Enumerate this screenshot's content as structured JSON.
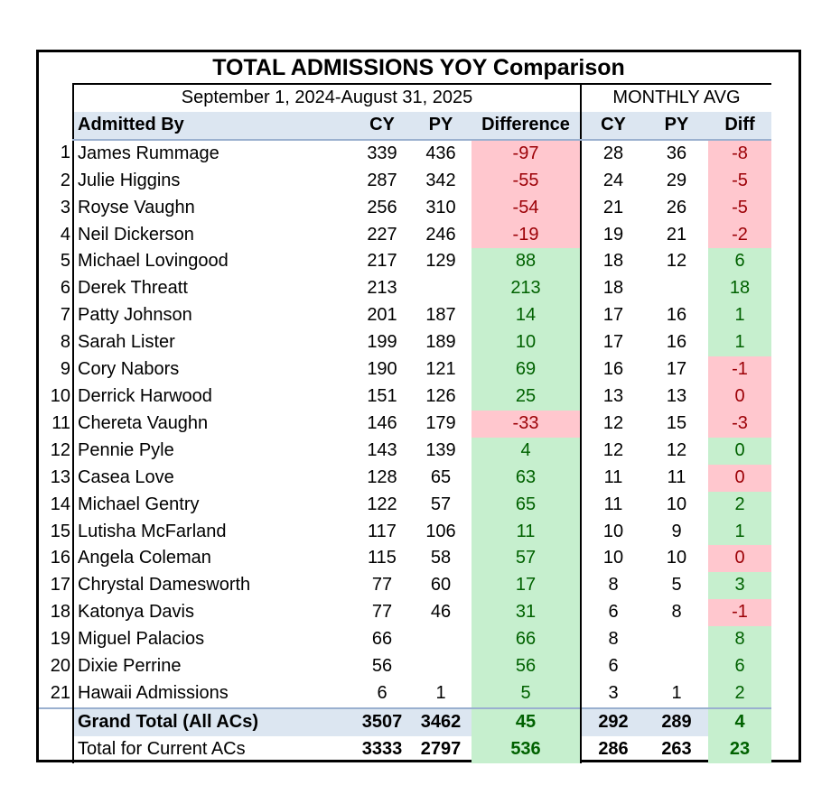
{
  "title": "TOTAL ADMISSIONS YOY Comparison",
  "period_label": "September 1, 2024-August 31, 2025",
  "monthly_label": "MONTHLY AVG",
  "headers": {
    "admitted_by": "Admitted By",
    "cy": "CY",
    "py": "PY",
    "difference": "Difference",
    "m_cy": "CY",
    "m_py": "PY",
    "m_diff": "Diff"
  },
  "rows": [
    {
      "idx": "1",
      "name": "James Rummage",
      "cy": "339",
      "py": "436",
      "diff": "-97",
      "mcy": "28",
      "mpy": "36",
      "mdiff": "-8"
    },
    {
      "idx": "2",
      "name": "Julie Higgins",
      "cy": "287",
      "py": "342",
      "diff": "-55",
      "mcy": "24",
      "mpy": "29",
      "mdiff": "-5"
    },
    {
      "idx": "3",
      "name": "Royse Vaughn",
      "cy": "256",
      "py": "310",
      "diff": "-54",
      "mcy": "21",
      "mpy": "26",
      "mdiff": "-5"
    },
    {
      "idx": "4",
      "name": "Neil Dickerson",
      "cy": "227",
      "py": "246",
      "diff": "-19",
      "mcy": "19",
      "mpy": "21",
      "mdiff": "-2"
    },
    {
      "idx": "5",
      "name": "Michael Lovingood",
      "cy": "217",
      "py": "129",
      "diff": "88",
      "mcy": "18",
      "mpy": "12",
      "mdiff": "6"
    },
    {
      "idx": "6",
      "name": "Derek Threatt",
      "cy": "213",
      "py": "",
      "diff": "213",
      "mcy": "18",
      "mpy": "",
      "mdiff": "18"
    },
    {
      "idx": "7",
      "name": "Patty Johnson",
      "cy": "201",
      "py": "187",
      "diff": "14",
      "mcy": "17",
      "mpy": "16",
      "mdiff": "1"
    },
    {
      "idx": "8",
      "name": "Sarah Lister",
      "cy": "199",
      "py": "189",
      "diff": "10",
      "mcy": "17",
      "mpy": "16",
      "mdiff": "1"
    },
    {
      "idx": "9",
      "name": "Cory Nabors",
      "cy": "190",
      "py": "121",
      "diff": "69",
      "mcy": "16",
      "mpy": "17",
      "mdiff": "-1"
    },
    {
      "idx": "10",
      "name": "Derrick Harwood",
      "cy": "151",
      "py": "126",
      "diff": "25",
      "mcy": "13",
      "mpy": "13",
      "mdiff": "0"
    },
    {
      "idx": "11",
      "name": "Chereta Vaughn",
      "cy": "146",
      "py": "179",
      "diff": "-33",
      "mcy": "12",
      "mpy": "15",
      "mdiff": "-3"
    },
    {
      "idx": "12",
      "name": "Pennie Pyle",
      "cy": "143",
      "py": "139",
      "diff": "4",
      "mcy": "12",
      "mpy": "12",
      "mdiff": "0"
    },
    {
      "idx": "13",
      "name": "Casea Love",
      "cy": "128",
      "py": "65",
      "diff": "63",
      "mcy": "11",
      "mpy": "11",
      "mdiff": "0"
    },
    {
      "idx": "14",
      "name": "Michael Gentry",
      "cy": "122",
      "py": "57",
      "diff": "65",
      "mcy": "11",
      "mpy": "10",
      "mdiff": "2"
    },
    {
      "idx": "15",
      "name": "Lutisha McFarland",
      "cy": "117",
      "py": "106",
      "diff": "11",
      "mcy": "10",
      "mpy": "9",
      "mdiff": "1"
    },
    {
      "idx": "16",
      "name": "Angela Coleman",
      "cy": "115",
      "py": "58",
      "diff": "57",
      "mcy": "10",
      "mpy": "10",
      "mdiff": "0"
    },
    {
      "idx": "17",
      "name": "Chrystal Damesworth",
      "cy": "77",
      "py": "60",
      "diff": "17",
      "mcy": "8",
      "mpy": "5",
      "mdiff": "3"
    },
    {
      "idx": "18",
      "name": "Katonya Davis",
      "cy": "77",
      "py": "46",
      "diff": "31",
      "mcy": "6",
      "mpy": "8",
      "mdiff": "-1"
    },
    {
      "idx": "19",
      "name": "Miguel Palacios",
      "cy": "66",
      "py": "",
      "diff": "66",
      "mcy": "8",
      "mpy": "",
      "mdiff": "8"
    },
    {
      "idx": "20",
      "name": "Dixie Perrine",
      "cy": "56",
      "py": "",
      "diff": "56",
      "mcy": "6",
      "mpy": "",
      "mdiff": "6"
    },
    {
      "idx": "21",
      "name": "Hawaii Admissions",
      "cy": "6",
      "py": "1",
      "diff": "5",
      "mcy": "3",
      "mpy": "1",
      "mdiff": "2"
    }
  ],
  "mdiff_negative_rows": [
    0,
    1,
    2,
    3,
    8,
    9,
    10,
    12,
    15,
    17
  ],
  "diff_negative_rows": [
    0,
    1,
    2,
    3,
    10
  ],
  "grand_total": {
    "name": "Grand Total (All ACs)",
    "cy": "3507",
    "py": "3462",
    "diff": "45",
    "mcy": "292",
    "mpy": "289",
    "mdiff": "4"
  },
  "current_total": {
    "name": "Total for Current ACs",
    "cy": "3333",
    "py": "2797",
    "diff": "536",
    "mcy": "286",
    "mpy": "263",
    "mdiff": "23"
  },
  "colors": {
    "header_bg": "#dce6f1",
    "neg_bg": "#ffc7ce",
    "neg_text": "#9c0006",
    "pos_bg": "#c6efce",
    "pos_text": "#006100"
  }
}
